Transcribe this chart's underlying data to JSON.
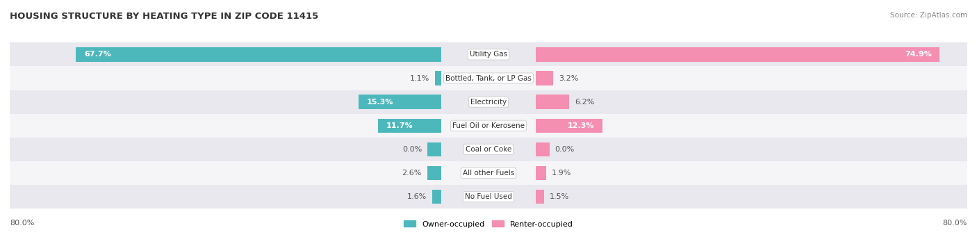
{
  "title": "HOUSING STRUCTURE BY HEATING TYPE IN ZIP CODE 11415",
  "source": "Source: ZipAtlas.com",
  "categories": [
    "Utility Gas",
    "Bottled, Tank, or LP Gas",
    "Electricity",
    "Fuel Oil or Kerosene",
    "Coal or Coke",
    "All other Fuels",
    "No Fuel Used"
  ],
  "owner_values": [
    67.7,
    1.1,
    15.3,
    11.7,
    0.0,
    2.6,
    1.6
  ],
  "renter_values": [
    74.9,
    3.2,
    6.2,
    12.3,
    0.0,
    1.9,
    1.5
  ],
  "owner_color": "#4db8bc",
  "renter_color": "#f48fb1",
  "row_bg_colors": [
    "#e8e8ee",
    "#f5f5f8",
    "#e8e8ee",
    "#f5f5f8",
    "#e8e8ee",
    "#f5f5f8",
    "#e8e8ee"
  ],
  "axis_max": 80.0,
  "min_bar_val": 2.5,
  "title_fontsize": 9.5,
  "source_fontsize": 7.5,
  "label_fontsize": 8,
  "category_fontsize": 7.5,
  "legend_fontsize": 8,
  "axis_label_fontsize": 8,
  "bar_height": 0.6,
  "owner_label_color_inside": "#ffffff",
  "owner_label_color_outside": "#555555",
  "renter_label_color_inside": "#ffffff",
  "renter_label_color_outside": "#555555",
  "inside_threshold": 10.0
}
